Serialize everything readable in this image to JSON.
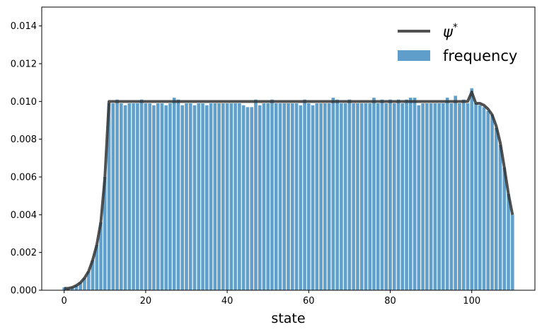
{
  "chart_data": {
    "type": "bar",
    "xlabel": "state",
    "ylabel": "",
    "xlim": [
      -5.5,
      115.5
    ],
    "ylim": [
      0,
      0.015
    ],
    "xticks": [
      0,
      20,
      40,
      60,
      80,
      100
    ],
    "xtick_labels": [
      "0",
      "20",
      "40",
      "60",
      "80",
      "100"
    ],
    "yticks": [
      0,
      0.002,
      0.004,
      0.006,
      0.008,
      0.01,
      0.012,
      0.014
    ],
    "ytick_labels": [
      "0.000",
      "0.002",
      "0.004",
      "0.006",
      "0.008",
      "0.010",
      "0.012",
      "0.014"
    ],
    "grid": false,
    "legend_position": "top-right",
    "series": [
      {
        "name": "ψ*",
        "kind": "line",
        "color": "#333333",
        "x": [
          0,
          1,
          2,
          3,
          4,
          5,
          6,
          7,
          8,
          9,
          10,
          11,
          12,
          13,
          14,
          15,
          16,
          17,
          18,
          19,
          20,
          21,
          22,
          23,
          24,
          25,
          26,
          27,
          28,
          29,
          30,
          31,
          32,
          33,
          34,
          35,
          36,
          37,
          38,
          39,
          40,
          41,
          42,
          43,
          44,
          45,
          46,
          47,
          48,
          49,
          50,
          51,
          52,
          53,
          54,
          55,
          56,
          57,
          58,
          59,
          60,
          61,
          62,
          63,
          64,
          65,
          66,
          67,
          68,
          69,
          70,
          71,
          72,
          73,
          74,
          75,
          76,
          77,
          78,
          79,
          80,
          81,
          82,
          83,
          84,
          85,
          86,
          87,
          88,
          89,
          90,
          91,
          92,
          93,
          94,
          95,
          96,
          97,
          98,
          99,
          100,
          101,
          102,
          103,
          104,
          105,
          106,
          107,
          108,
          109,
          110
        ],
        "values": [
          0.0001,
          0.0001,
          0.00015,
          0.00025,
          0.0004,
          0.00065,
          0.001,
          0.0016,
          0.0024,
          0.0036,
          0.006,
          0.01,
          0.01,
          0.01,
          0.01,
          0.01,
          0.01,
          0.01,
          0.01,
          0.01,
          0.01,
          0.01,
          0.01,
          0.01,
          0.01,
          0.01,
          0.01,
          0.01,
          0.01,
          0.01,
          0.01,
          0.01,
          0.01,
          0.01,
          0.01,
          0.01,
          0.01,
          0.01,
          0.01,
          0.01,
          0.01,
          0.01,
          0.01,
          0.01,
          0.01,
          0.01,
          0.01,
          0.01,
          0.01,
          0.01,
          0.01,
          0.01,
          0.01,
          0.01,
          0.01,
          0.01,
          0.01,
          0.01,
          0.01,
          0.01,
          0.01,
          0.01,
          0.01,
          0.01,
          0.01,
          0.01,
          0.01,
          0.01,
          0.01,
          0.01,
          0.01,
          0.01,
          0.01,
          0.01,
          0.01,
          0.01,
          0.01,
          0.01,
          0.01,
          0.01,
          0.01,
          0.01,
          0.01,
          0.01,
          0.01,
          0.01,
          0.01,
          0.01,
          0.01,
          0.01,
          0.01,
          0.01,
          0.01,
          0.01,
          0.01,
          0.01,
          0.01,
          0.01,
          0.01,
          0.01,
          0.0105,
          0.0099,
          0.0099,
          0.0098,
          0.0096,
          0.0093,
          0.0087,
          0.0078,
          0.0065,
          0.0051,
          0.004
        ]
      },
      {
        "name": "frequency",
        "kind": "bar",
        "color": "#5f9ecb",
        "x": [
          0,
          1,
          2,
          3,
          4,
          5,
          6,
          7,
          8,
          9,
          10,
          11,
          12,
          13,
          14,
          15,
          16,
          17,
          18,
          19,
          20,
          21,
          22,
          23,
          24,
          25,
          26,
          27,
          28,
          29,
          30,
          31,
          32,
          33,
          34,
          35,
          36,
          37,
          38,
          39,
          40,
          41,
          42,
          43,
          44,
          45,
          46,
          47,
          48,
          49,
          50,
          51,
          52,
          53,
          54,
          55,
          56,
          57,
          58,
          59,
          60,
          61,
          62,
          63,
          64,
          65,
          66,
          67,
          68,
          69,
          70,
          71,
          72,
          73,
          74,
          75,
          76,
          77,
          78,
          79,
          80,
          81,
          82,
          83,
          84,
          85,
          86,
          87,
          88,
          89,
          90,
          91,
          92,
          93,
          94,
          95,
          96,
          97,
          98,
          99,
          100,
          101,
          102,
          103,
          104,
          105,
          106,
          107,
          108,
          109,
          110
        ],
        "values": [
          0.00015,
          0.0001,
          0.00015,
          0.00025,
          0.0004,
          0.00065,
          0.001,
          0.0016,
          0.0024,
          0.0036,
          0.006,
          0.0099,
          0.0099,
          0.0101,
          0.0099,
          0.0098,
          0.0099,
          0.0099,
          0.0099,
          0.0101,
          0.0099,
          0.0099,
          0.0098,
          0.0099,
          0.0099,
          0.0098,
          0.0099,
          0.0102,
          0.0101,
          0.0098,
          0.0099,
          0.0099,
          0.0098,
          0.0099,
          0.0099,
          0.0098,
          0.0099,
          0.0099,
          0.0099,
          0.0099,
          0.0099,
          0.0099,
          0.0099,
          0.0099,
          0.0098,
          0.0097,
          0.0097,
          0.0101,
          0.0098,
          0.0099,
          0.0099,
          0.0101,
          0.0099,
          0.0099,
          0.0099,
          0.0099,
          0.0099,
          0.0099,
          0.0098,
          0.0101,
          0.0099,
          0.0098,
          0.0099,
          0.0099,
          0.0099,
          0.0099,
          0.0102,
          0.0101,
          0.0099,
          0.0099,
          0.0101,
          0.0099,
          0.0099,
          0.0099,
          0.0099,
          0.0099,
          0.0102,
          0.0099,
          0.0101,
          0.0099,
          0.0101,
          0.0099,
          0.0101,
          0.0099,
          0.0101,
          0.0102,
          0.0102,
          0.0098,
          0.0099,
          0.0099,
          0.0099,
          0.0099,
          0.0099,
          0.0099,
          0.0102,
          0.0099,
          0.0103,
          0.0099,
          0.0101,
          0.0099,
          0.0107,
          0.0099,
          0.0098,
          0.0097,
          0.0095,
          0.0093,
          0.0086,
          0.0077,
          0.0065,
          0.0051,
          0.004
        ]
      }
    ]
  }
}
